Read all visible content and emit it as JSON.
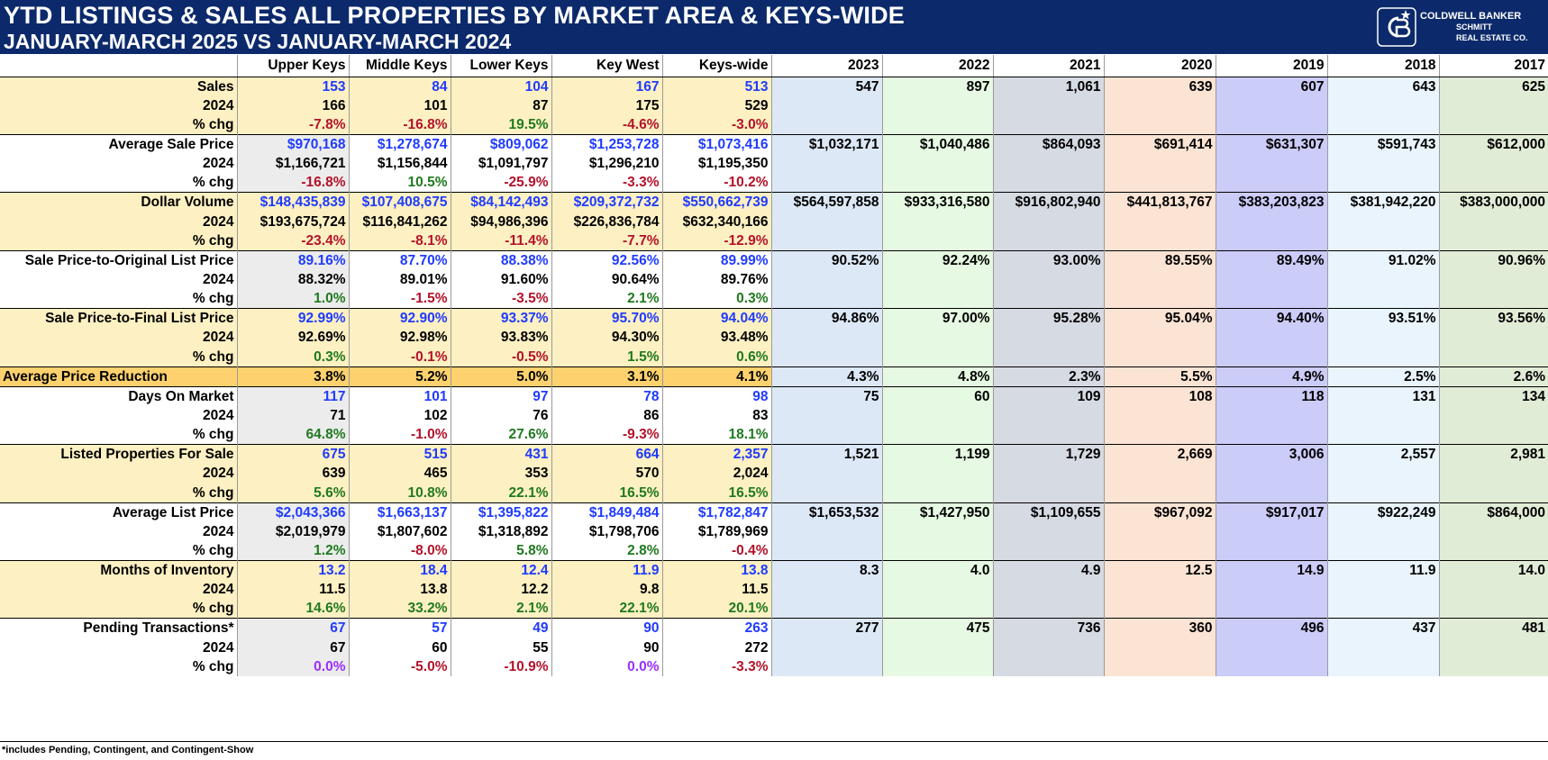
{
  "header": {
    "title": "YTD LISTINGS & SALES ALL PROPERTIES BY MARKET AREA & KEYS-WIDE",
    "subtitle": "JANUARY-MARCH 2025 VS JANUARY-MARCH 2024",
    "brand_line1": "COLDWELL BANKER",
    "brand_line2": "SCHMITT",
    "brand_line3": "REAL ESTATE CO."
  },
  "columns": {
    "areas": [
      "Upper Keys",
      "Middle Keys",
      "Lower Keys",
      "Key West",
      "Keys-wide"
    ],
    "years": [
      "2023",
      "2022",
      "2021",
      "2020",
      "2019",
      "2018",
      "2017"
    ]
  },
  "metrics": [
    {
      "label": "Sales",
      "v2025": [
        "153",
        "84",
        "104",
        "167",
        "513"
      ],
      "v2024": [
        "166",
        "101",
        "87",
        "175",
        "529"
      ],
      "chg": [
        "-7.8%",
        "-16.8%",
        "19.5%",
        "-4.6%",
        "-3.0%"
      ],
      "years": [
        "547",
        "897",
        "1,061",
        "639",
        "607",
        "643",
        "625"
      ]
    },
    {
      "label": "Average Sale Price",
      "v2025": [
        "$970,168",
        "$1,278,674",
        "$809,062",
        "$1,253,728",
        "$1,073,416"
      ],
      "v2024": [
        "$1,166,721",
        "$1,156,844",
        "$1,091,797",
        "$1,296,210",
        "$1,195,350"
      ],
      "chg": [
        "-16.8%",
        "10.5%",
        "-25.9%",
        "-3.3%",
        "-10.2%"
      ],
      "years": [
        "$1,032,171",
        "$1,040,486",
        "$864,093",
        "$691,414",
        "$631,307",
        "$591,743",
        "$612,000"
      ]
    },
    {
      "label": "Dollar Volume",
      "v2025": [
        "$148,435,839",
        "$107,408,675",
        "$84,142,493",
        "$209,372,732",
        "$550,662,739"
      ],
      "v2024": [
        "$193,675,724",
        "$116,841,262",
        "$94,986,396",
        "$226,836,784",
        "$632,340,166"
      ],
      "chg": [
        "-23.4%",
        "-8.1%",
        "-11.4%",
        "-7.7%",
        "-12.9%"
      ],
      "years": [
        "$564,597,858",
        "$933,316,580",
        "$916,802,940",
        "$441,813,767",
        "$383,203,823",
        "$381,942,220",
        "$383,000,000"
      ]
    },
    {
      "label": "Sale Price-to-Original List Price",
      "v2025": [
        "89.16%",
        "87.70%",
        "88.38%",
        "92.56%",
        "89.99%"
      ],
      "v2024": [
        "88.32%",
        "89.01%",
        "91.60%",
        "90.64%",
        "89.76%"
      ],
      "chg": [
        "1.0%",
        "-1.5%",
        "-3.5%",
        "2.1%",
        "0.3%"
      ],
      "years": [
        "90.52%",
        "92.24%",
        "93.00%",
        "89.55%",
        "89.49%",
        "91.02%",
        "90.96%"
      ]
    },
    {
      "label": "Sale Price-to-Final List Price",
      "v2025": [
        "92.99%",
        "92.90%",
        "93.37%",
        "95.70%",
        "94.04%"
      ],
      "v2024": [
        "92.69%",
        "92.98%",
        "93.83%",
        "94.30%",
        "93.48%"
      ],
      "chg": [
        "0.3%",
        "-0.1%",
        "-0.5%",
        "1.5%",
        "0.6%"
      ],
      "years": [
        "94.86%",
        "97.00%",
        "95.28%",
        "95.04%",
        "94.40%",
        "93.51%",
        "93.56%"
      ]
    },
    {
      "label": "Days On Market",
      "v2025": [
        "117",
        "101",
        "97",
        "78",
        "98"
      ],
      "v2024": [
        "71",
        "102",
        "76",
        "86",
        "83"
      ],
      "chg": [
        "64.8%",
        "-1.0%",
        "27.6%",
        "-9.3%",
        "18.1%"
      ],
      "years": [
        "75",
        "60",
        "109",
        "108",
        "118",
        "131",
        "134"
      ]
    },
    {
      "label": "Listed Properties For Sale",
      "v2025": [
        "675",
        "515",
        "431",
        "664",
        "2,357"
      ],
      "v2024": [
        "639",
        "465",
        "353",
        "570",
        "2,024"
      ],
      "chg": [
        "5.6%",
        "10.8%",
        "22.1%",
        "16.5%",
        "16.5%"
      ],
      "years": [
        "1,521",
        "1,199",
        "1,729",
        "2,669",
        "3,006",
        "2,557",
        "2,981"
      ]
    },
    {
      "label": "Average List Price",
      "v2025": [
        "$2,043,366",
        "$1,663,137",
        "$1,395,822",
        "$1,849,484",
        "$1,782,847"
      ],
      "v2024": [
        "$2,019,979",
        "$1,807,602",
        "$1,318,892",
        "$1,798,706",
        "$1,789,969"
      ],
      "chg": [
        "1.2%",
        "-8.0%",
        "5.8%",
        "2.8%",
        "-0.4%"
      ],
      "years": [
        "$1,653,532",
        "$1,427,950",
        "$1,109,655",
        "$967,092",
        "$917,017",
        "$922,249",
        "$864,000"
      ]
    },
    {
      "label": "Months of Inventory",
      "v2025": [
        "13.2",
        "18.4",
        "12.4",
        "11.9",
        "13.8"
      ],
      "v2024": [
        "11.5",
        "13.8",
        "12.2",
        "9.8",
        "11.5"
      ],
      "chg": [
        "14.6%",
        "33.2%",
        "2.1%",
        "22.1%",
        "20.1%"
      ],
      "years": [
        "8.3",
        "4.0",
        "4.9",
        "12.5",
        "14.9",
        "11.9",
        "14.0"
      ]
    },
    {
      "label": "Pending Transactions*",
      "v2025": [
        "67",
        "57",
        "49",
        "90",
        "263"
      ],
      "v2024": [
        "67",
        "60",
        "55",
        "90",
        "272"
      ],
      "chg": [
        "0.0%",
        "-5.0%",
        "-10.9%",
        "0.0%",
        "-3.3%"
      ],
      "years": [
        "277",
        "475",
        "736",
        "360",
        "496",
        "437",
        "481"
      ]
    }
  ],
  "price_reduction": {
    "label": "Average Price Reduction",
    "areas": [
      "3.8%",
      "5.2%",
      "5.0%",
      "3.1%",
      "4.1%"
    ],
    "years": [
      "4.3%",
      "4.8%",
      "2.3%",
      "5.5%",
      "4.9%",
      "2.5%",
      "2.6%"
    ]
  },
  "row_labels": {
    "year_2024": "2024",
    "pct_chg": "% chg"
  },
  "colors": {
    "header_bg": "#0c2a6b",
    "current_year_text": "#1f3bff",
    "negative_text": "#b3122a",
    "positive_text": "#1f7a1f",
    "zero_text": "#9b30ff",
    "highlight_row": "#fdd26e"
  },
  "footnote": "*includes Pending, Contingent, and Contingent-Show"
}
